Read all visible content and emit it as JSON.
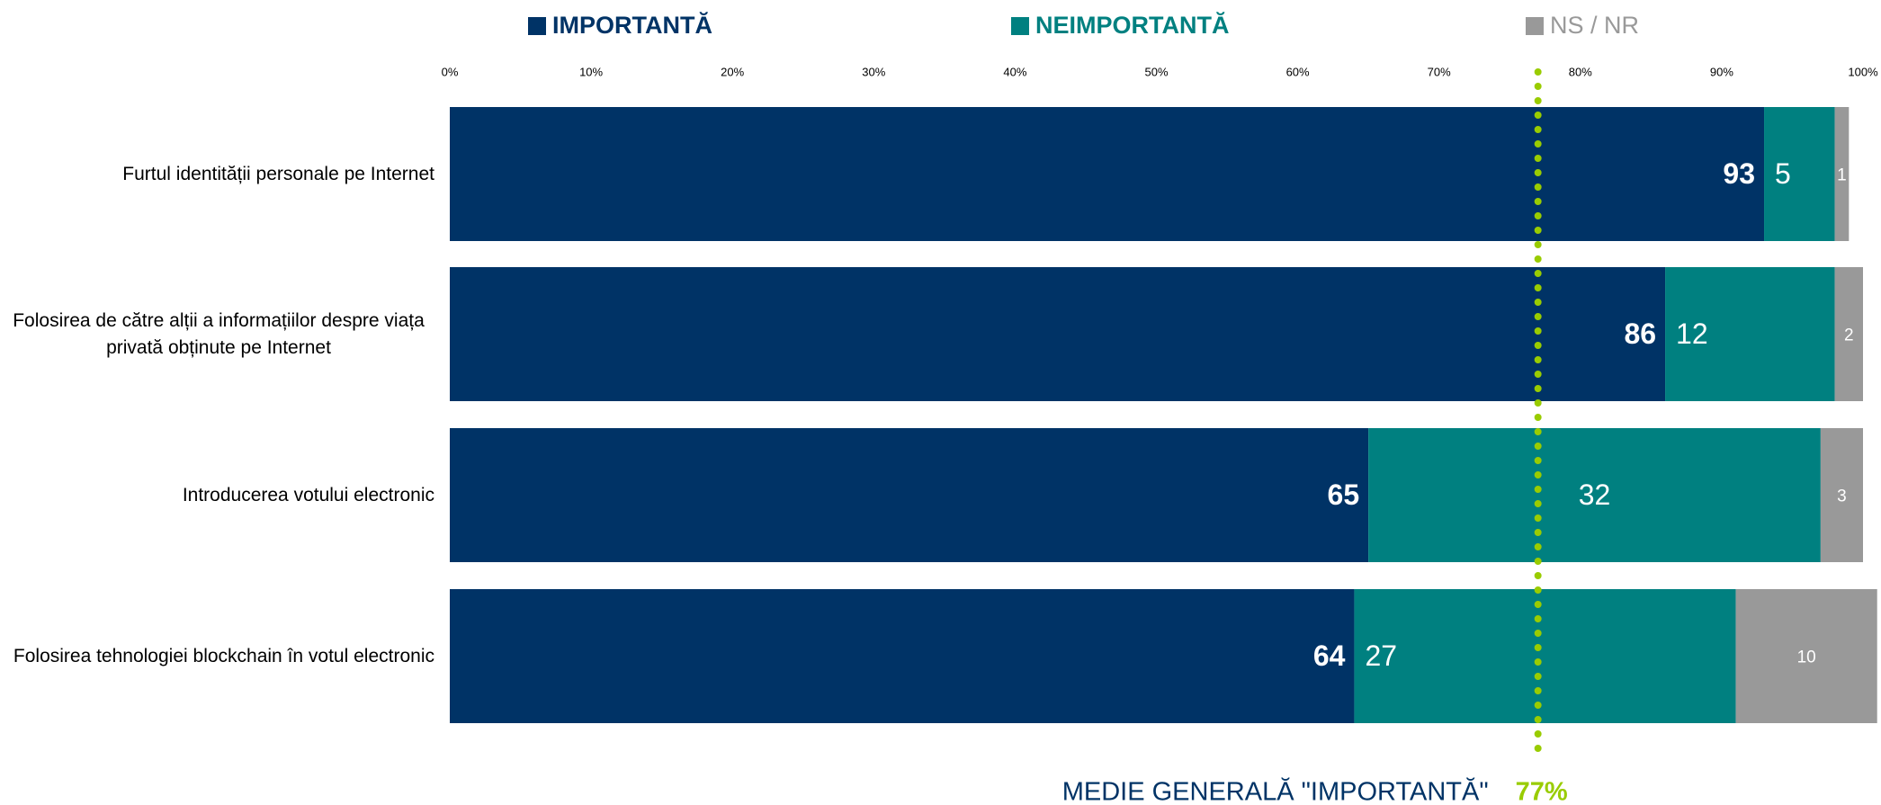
{
  "chart_data": {
    "type": "bar",
    "orientation": "horizontal",
    "stacked": true,
    "categories": [
      "Furtul identității personale pe Internet",
      "Folosirea de către alții a informațiilor despre viața privată obținute pe Internet",
      "Introducerea votului electronic",
      "Folosirea tehnologiei blockchain în votul electronic"
    ],
    "series": [
      {
        "name": "IMPORTANTĂ",
        "color": "#003366",
        "values": [
          93,
          86,
          65,
          64
        ]
      },
      {
        "name": "NEIMPORTANTĂ",
        "color": "#008080",
        "values": [
          5,
          12,
          32,
          27
        ]
      },
      {
        "name": "NS / NR",
        "color": "#999999",
        "values": [
          1,
          2,
          3,
          10
        ]
      }
    ],
    "xlim": [
      0,
      100
    ],
    "xticks": [
      {
        "value": 0,
        "label": "0%"
      },
      {
        "value": 10,
        "label": "10%"
      },
      {
        "value": 20,
        "label": "20%"
      },
      {
        "value": 30,
        "label": "30%"
      },
      {
        "value": 40,
        "label": "40%"
      },
      {
        "value": 50,
        "label": "50%"
      },
      {
        "value": 60,
        "label": "60%"
      },
      {
        "value": 70,
        "label": "70%"
      },
      {
        "value": 80,
        "label": "80%"
      },
      {
        "value": 90,
        "label": "90%"
      },
      {
        "value": 100,
        "label": "100%"
      }
    ],
    "legend": "top",
    "annotation": {
      "text": "MEDIE GENERALĂ \"IMPORTANTĂ\"",
      "value": 77,
      "value_label": "77%",
      "color": "#99cc00"
    }
  }
}
